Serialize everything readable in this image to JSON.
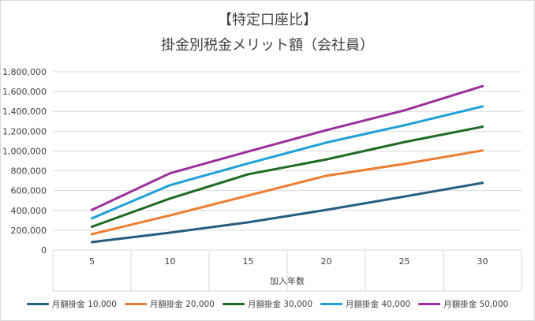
{
  "chart_data": {
    "type": "line",
    "title": "【特定口座比】",
    "subtitle": "掛金別税金メリット額（会社員）",
    "xlabel": "加入年数",
    "ylabel": "",
    "categories": [
      "5",
      "10",
      "15",
      "20",
      "25",
      "30"
    ],
    "ylim": [
      0,
      1800000
    ],
    "yticks": [
      "0",
      "200,000",
      "400,000",
      "600,000",
      "800,000",
      "1,000,000",
      "1,200,000",
      "1,400,000",
      "1,600,000",
      "1,800,000"
    ],
    "grid": true,
    "legend_position": "bottom",
    "series": [
      {
        "name": "月額掛金 10,000",
        "color": "#255e80",
        "values": [
          80000,
          175000,
          280000,
          405000,
          540000,
          678000
        ]
      },
      {
        "name": "月額掛金 20,000",
        "color": "#ed7d31",
        "values": [
          160000,
          350000,
          550000,
          750000,
          870000,
          1005000
        ]
      },
      {
        "name": "月額掛金 30,000",
        "color": "#1e6b24",
        "values": [
          235000,
          520000,
          765000,
          915000,
          1090000,
          1245000
        ]
      },
      {
        "name": "月額掛金 40,000",
        "color": "#1fa0d6",
        "values": [
          320000,
          655000,
          875000,
          1085000,
          1260000,
          1450000
        ]
      },
      {
        "name": "月額掛金 50,000",
        "color": "#9b2f9b",
        "values": [
          405000,
          775000,
          995000,
          1210000,
          1410000,
          1655000
        ]
      }
    ]
  }
}
